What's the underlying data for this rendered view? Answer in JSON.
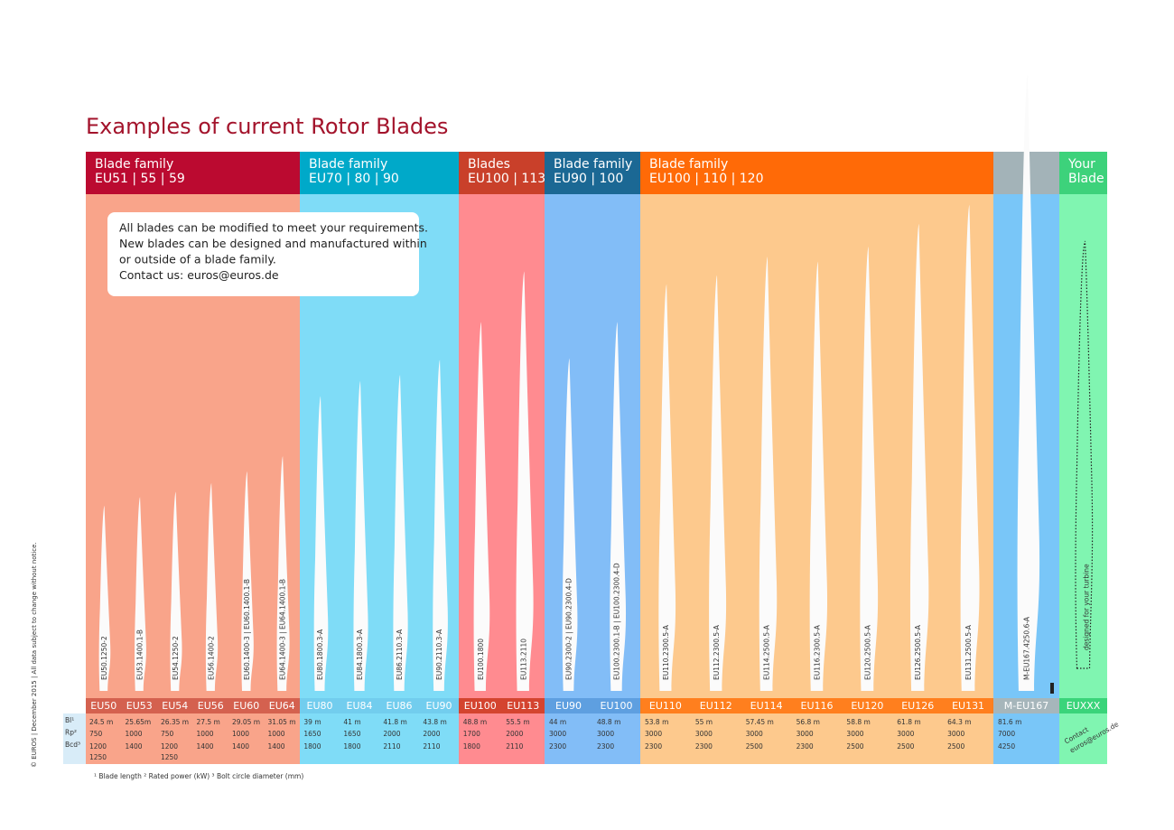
{
  "title": "Examples of current Rotor Blades",
  "note": [
    "All blades can be modified to meet your requirements.",
    "New blades can be designed and manufactured within",
    "or outside of a blade family.",
    "Contact us: euros@euros.de"
  ],
  "row_labels": [
    "Bl¹",
    "Rp²",
    "Bcd³"
  ],
  "families": [
    {
      "header": [
        "Blade family",
        "EU51 | 55 | 59"
      ],
      "blades": [
        {
          "name": "EU50",
          "code": "EU50.1250-2",
          "bl": "24.5 m",
          "rp": "750",
          "bcd": [
            "1200",
            "1250"
          ]
        },
        {
          "name": "EU53",
          "code": "EU53.1400.1-B",
          "bl": "25.65m",
          "rp": "1000",
          "bcd": [
            "1400"
          ]
        },
        {
          "name": "EU54",
          "code": "EU54.1250-2",
          "bl": "26.35 m",
          "rp": "750",
          "bcd": [
            "1200",
            "1250"
          ]
        },
        {
          "name": "EU56",
          "code": "EU56.1400-2",
          "bl": "27.5 m",
          "rp": "1000",
          "bcd": [
            "1400"
          ]
        },
        {
          "name": "EU60",
          "code": "EU60.1400-3 | EU60.1400.1-B",
          "bl": "29.05 m",
          "rp": "1000",
          "bcd": [
            "1400"
          ]
        },
        {
          "name": "EU64",
          "code": "EU64.1400-3 | EU64.1400.1-B",
          "bl": "31.05 m",
          "rp": "1000",
          "bcd": [
            "1400"
          ]
        }
      ]
    },
    {
      "header": [
        "Blade family",
        "EU70 | 80 | 90"
      ],
      "blades": [
        {
          "name": "EU80",
          "code": "EU80.1800.3-A",
          "bl": "39 m",
          "rp": "1650",
          "bcd": [
            "1800"
          ]
        },
        {
          "name": "EU84",
          "code": "EU84.1800.3-A",
          "bl": "41 m",
          "rp": "1650",
          "bcd": [
            "1800"
          ]
        },
        {
          "name": "EU86",
          "code": "EU86.2110.3-A",
          "bl": "41.8 m",
          "rp": "2000",
          "bcd": [
            "2110"
          ]
        },
        {
          "name": "EU90",
          "code": "EU90.2110.3-A",
          "bl": "43.8 m",
          "rp": "2000",
          "bcd": [
            "2110"
          ]
        }
      ]
    },
    {
      "header": [
        "Blades",
        "EU100 | 113"
      ],
      "blades": [
        {
          "name": "EU100",
          "code": "EU100.1800",
          "bl": "48.8 m",
          "rp": "1700",
          "bcd": [
            "1800"
          ]
        },
        {
          "name": "EU113",
          "code": "EU113.2110",
          "bl": "55.5 m",
          "rp": "2000",
          "bcd": [
            "2110"
          ]
        }
      ]
    },
    {
      "header": [
        "Blade family",
        "EU90 | 100"
      ],
      "blades": [
        {
          "name": "EU90",
          "code": "EU90.2300-2 | EU90.2300.4-D",
          "bl": "44 m",
          "rp": "3000",
          "bcd": [
            "2300"
          ]
        },
        {
          "name": "EU100",
          "code": "EU100.2300.1-B | EU100.2300.4-D",
          "bl": "48.8 m",
          "rp": "3000",
          "bcd": [
            "2300"
          ]
        }
      ]
    },
    {
      "header": [
        "Blade family",
        "EU100 | 110 | 120"
      ],
      "blades": [
        {
          "name": "EU110",
          "code": "EU110.2300.5-A",
          "bl": "53.8 m",
          "rp": "3000",
          "bcd": [
            "2300"
          ]
        },
        {
          "name": "EU112",
          "code": "EU112.2300.5-A",
          "bl": "55 m",
          "rp": "3000",
          "bcd": [
            "2300"
          ]
        },
        {
          "name": "EU114",
          "code": "EU114.2500.5-A",
          "bl": "57.45 m",
          "rp": "3000",
          "bcd": [
            "2500"
          ]
        },
        {
          "name": "EU116",
          "code": "EU116.2300.5-A",
          "bl": "56.8 m",
          "rp": "3000",
          "bcd": [
            "2300"
          ]
        },
        {
          "name": "EU120",
          "code": "EU120.2500.5-A",
          "bl": "58.8 m",
          "rp": "3000",
          "bcd": [
            "2500"
          ]
        },
        {
          "name": "EU126",
          "code": "EU126.2500.5-A",
          "bl": "61.8 m",
          "rp": "3000",
          "bcd": [
            "2500"
          ]
        },
        {
          "name": "EU131",
          "code": "EU131.2500.5-A",
          "bl": "64.3 m",
          "rp": "3000",
          "bcd": [
            "2500"
          ]
        }
      ]
    },
    {
      "header": [],
      "blades": [
        {
          "name": "M-EU167",
          "code": "M-EU167.4250.6-A",
          "bl": "81.6 m",
          "rp": "7000",
          "bcd": [
            "4250"
          ]
        }
      ]
    },
    {
      "header": [
        "Your",
        "Blade"
      ],
      "blades": [
        {
          "name": "EUXXX",
          "code": "designed for your turbine",
          "contact": [
            "Contact",
            "euros@euros.de"
          ]
        }
      ]
    }
  ],
  "footnote": "¹ Blade length ² Rated power (kW) ³ Bolt circle diameter (mm)",
  "copyright": "© EUROS | December 2015 | All data subject to change without notice."
}
